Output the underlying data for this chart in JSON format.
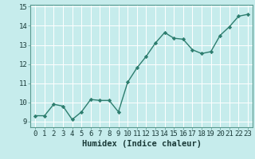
{
  "x": [
    0,
    1,
    2,
    3,
    4,
    5,
    6,
    7,
    8,
    9,
    10,
    11,
    12,
    13,
    14,
    15,
    16,
    17,
    18,
    19,
    20,
    21,
    22,
    23
  ],
  "y": [
    9.3,
    9.3,
    9.9,
    9.8,
    9.1,
    9.5,
    10.15,
    10.1,
    10.1,
    9.5,
    11.05,
    11.8,
    12.4,
    13.1,
    13.65,
    13.35,
    13.3,
    12.75,
    12.55,
    12.65,
    13.5,
    13.95,
    14.5,
    14.6
  ],
  "line_color": "#2d7d6e",
  "marker": "D",
  "marker_size": 2.2,
  "bg_color": "#c6ecec",
  "grid_color": "#ffffff",
  "xlabel": "Humidex (Indice chaleur)",
  "ylim": [
    8.7,
    15.1
  ],
  "xlim": [
    -0.5,
    23.5
  ],
  "yticks": [
    9,
    10,
    11,
    12,
    13,
    14,
    15
  ],
  "xticks": [
    0,
    1,
    2,
    3,
    4,
    5,
    6,
    7,
    8,
    9,
    10,
    11,
    12,
    13,
    14,
    15,
    16,
    17,
    18,
    19,
    20,
    21,
    22,
    23
  ],
  "tick_label_fontsize": 6.5,
  "xlabel_fontsize": 7.5,
  "line_width": 1.0,
  "spine_color": "#5a9a90"
}
